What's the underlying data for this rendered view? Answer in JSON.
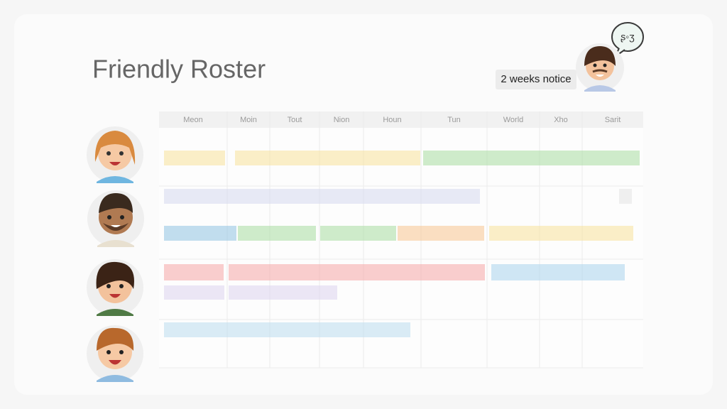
{
  "header": {
    "title": "Friendly Roster",
    "notice": "2 weeks notice"
  },
  "table": {
    "columns": [
      "Meon",
      "Moin",
      "Tout",
      "Nion",
      "Houn",
      "Tun",
      "World",
      "Xho",
      "Sarit"
    ]
  }
}
